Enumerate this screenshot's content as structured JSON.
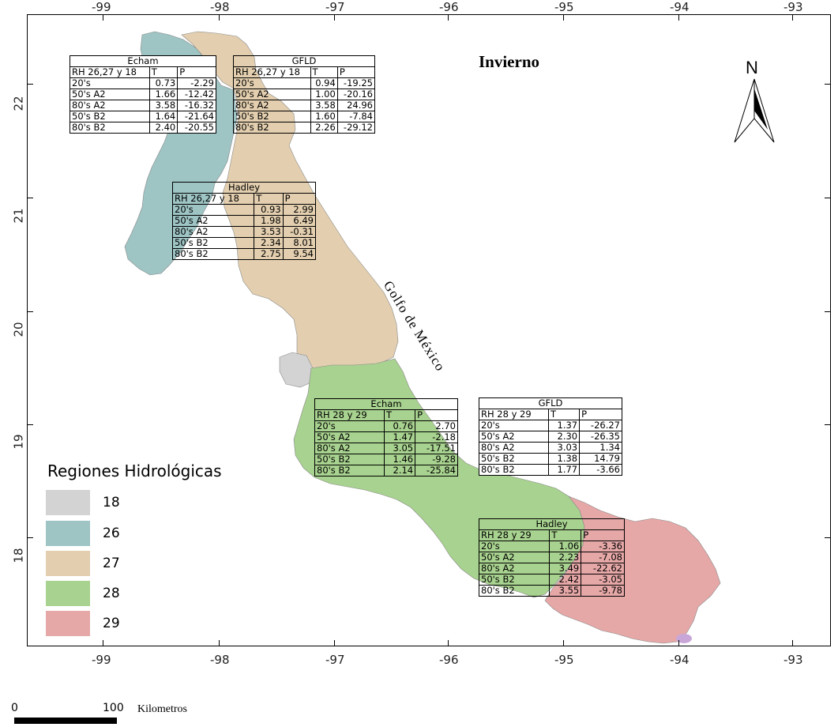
{
  "map": {
    "title": "Invierno",
    "sea_label": "Golfo de México",
    "north_label": "N",
    "x_ticks": [
      "-99",
      "-98",
      "-97",
      "-96",
      "-95",
      "-94",
      "-93"
    ],
    "y_ticks": [
      "22",
      "21",
      "20",
      "19",
      "18"
    ],
    "region_colors": {
      "18": "#d3d3d3",
      "26": "#9ec4c4",
      "27": "#e3cfaf",
      "28": "#a8d28f",
      "29": "#e6a7a7"
    }
  },
  "tables": {
    "echam_26": {
      "model": "Echam",
      "header": [
        "RH 26,27 y 18",
        "T",
        "P"
      ],
      "rows": [
        [
          "20's",
          "0.73",
          "-2.29"
        ],
        [
          "50's A2",
          "1.66",
          "-12.42"
        ],
        [
          "80's A2",
          "3.58",
          "-16.32"
        ],
        [
          "50's B2",
          "1.64",
          "-21.64"
        ],
        [
          "80's B2",
          "2.40",
          "-20.55"
        ]
      ]
    },
    "gfld_26": {
      "model": "GFLD",
      "header": [
        "RH 26,27 y 18",
        "T",
        "P"
      ],
      "rows": [
        [
          "20's",
          "0.94",
          "-19.25"
        ],
        [
          "50's A2",
          "1.00",
          "-20.16"
        ],
        [
          "80's A2",
          "3.58",
          "24.96"
        ],
        [
          "50's B2",
          "1.60",
          "-7.84"
        ],
        [
          "80's B2",
          "2.26",
          "-29.12"
        ]
      ]
    },
    "hadley_26": {
      "model": "Hadley",
      "header": [
        "RH 26,27 y 18",
        "T",
        "P"
      ],
      "rows": [
        [
          "20's",
          "0.93",
          "2.99"
        ],
        [
          "50's A2",
          "1.98",
          "6.49"
        ],
        [
          "80's A2",
          "3.53",
          "-0.31"
        ],
        [
          "50's B2",
          "2.34",
          "8.01"
        ],
        [
          "80's B2",
          "2.75",
          "9.54"
        ]
      ]
    },
    "echam_28": {
      "model": "Echam",
      "header": [
        "RH 28 y 29",
        "T",
        "P"
      ],
      "rows": [
        [
          "20's",
          "0.76",
          "2.70"
        ],
        [
          "50's A2",
          "1.47",
          "-2.18"
        ],
        [
          "80's A2",
          "3.05",
          "-17.51"
        ],
        [
          "50's B2",
          "1.46",
          "-9.28"
        ],
        [
          "80's B2",
          "2.14",
          "-25.84"
        ]
      ]
    },
    "gfld_28": {
      "model": "GFLD",
      "header": [
        "RH 28 y 29",
        "T",
        "P"
      ],
      "rows": [
        [
          "20's",
          "1.37",
          "-26.27"
        ],
        [
          "50's A2",
          "2.30",
          "-26.35"
        ],
        [
          "80's A2",
          "3.03",
          "1.34"
        ],
        [
          "50's B2",
          "1.38",
          "14.79"
        ],
        [
          "80's B2",
          "1.77",
          "-3.66"
        ]
      ]
    },
    "hadley_28": {
      "model": "Hadley",
      "header": [
        "RH 28 y 29",
        "T",
        "P"
      ],
      "rows": [
        [
          "20's",
          "1.06",
          "-3.36"
        ],
        [
          "50's A2",
          "2.23",
          "-7.08"
        ],
        [
          "80's A2",
          "3.49",
          "-22.62"
        ],
        [
          "50's B2",
          "2.42",
          "-3.05"
        ],
        [
          "80's B2",
          "3.55",
          "-9.78"
        ]
      ]
    }
  },
  "legend": {
    "title": "Regiones Hidrológicas",
    "items": [
      "18",
      "26",
      "27",
      "28",
      "29"
    ]
  },
  "scale": {
    "start": "0",
    "end": "100",
    "unit": "Kilometros"
  }
}
